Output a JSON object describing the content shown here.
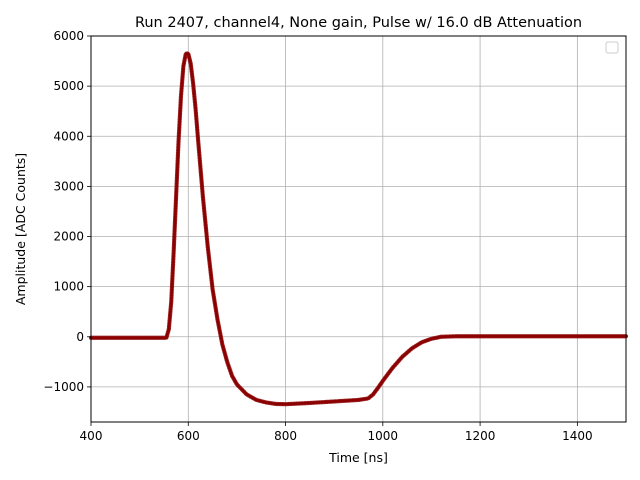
{
  "chart_data": {
    "type": "scatter",
    "title": "Run 2407, channel4, None gain, Pulse w/ 16.0 dB Attenuation",
    "xlabel": "Time [ns]",
    "ylabel": "Amplitude [ADC Counts]",
    "xlim": [
      400,
      1500
    ],
    "ylim": [
      -1700,
      6000
    ],
    "xticks": [
      400,
      600,
      800,
      1000,
      1200,
      1400
    ],
    "yticks": [
      -1000,
      0,
      1000,
      2000,
      3000,
      4000,
      5000,
      6000
    ],
    "grid": true,
    "legend": "top-right, empty",
    "series_color": "#8b0000",
    "series": [
      {
        "points": [
          [
            400,
            -20
          ],
          [
            450,
            -20
          ],
          [
            500,
            -20
          ],
          [
            555,
            -20
          ],
          [
            560,
            150
          ],
          [
            565,
            700
          ],
          [
            570,
            1700
          ],
          [
            575,
            2800
          ],
          [
            580,
            3900
          ],
          [
            585,
            4800
          ],
          [
            590,
            5400
          ],
          [
            595,
            5650
          ],
          [
            600,
            5650
          ],
          [
            605,
            5450
          ],
          [
            610,
            5050
          ],
          [
            615,
            4550
          ],
          [
            620,
            3950
          ],
          [
            630,
            2800
          ],
          [
            640,
            1800
          ],
          [
            650,
            950
          ],
          [
            660,
            350
          ],
          [
            670,
            -150
          ],
          [
            680,
            -500
          ],
          [
            690,
            -780
          ],
          [
            700,
            -950
          ],
          [
            720,
            -1150
          ],
          [
            740,
            -1260
          ],
          [
            760,
            -1310
          ],
          [
            780,
            -1340
          ],
          [
            800,
            -1345
          ],
          [
            850,
            -1320
          ],
          [
            900,
            -1290
          ],
          [
            950,
            -1260
          ],
          [
            970,
            -1230
          ],
          [
            980,
            -1150
          ],
          [
            990,
            -1020
          ],
          [
            1000,
            -880
          ],
          [
            1020,
            -620
          ],
          [
            1040,
            -400
          ],
          [
            1060,
            -230
          ],
          [
            1080,
            -110
          ],
          [
            1100,
            -40
          ],
          [
            1120,
            0
          ],
          [
            1150,
            10
          ],
          [
            1200,
            10
          ],
          [
            1300,
            10
          ],
          [
            1400,
            10
          ],
          [
            1500,
            10
          ]
        ]
      }
    ]
  }
}
